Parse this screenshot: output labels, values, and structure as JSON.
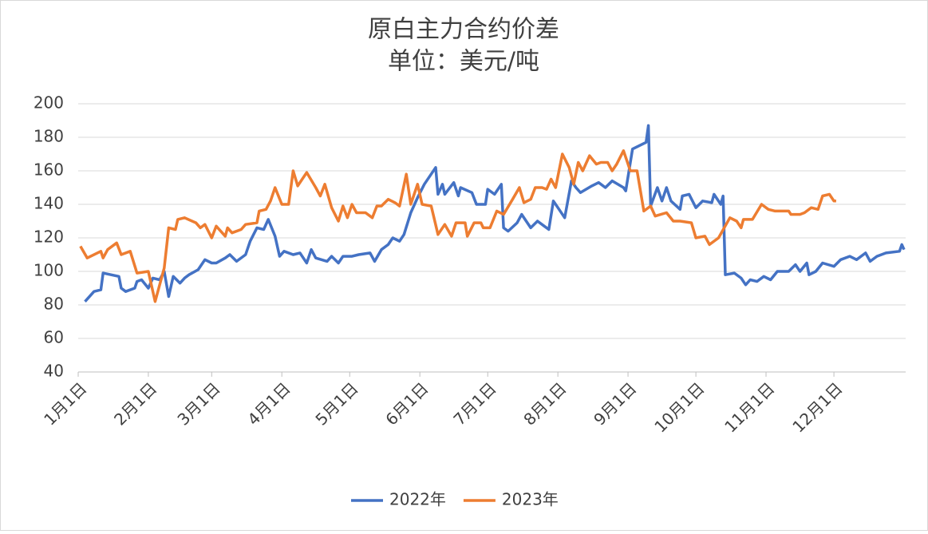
{
  "chart_data": {
    "type": "line",
    "title": "原白主力合约价差",
    "subtitle": "单位：美元/吨",
    "xlim": [
      1,
      366
    ],
    "xticks": [
      {
        "value": 1,
        "label": "1月1日"
      },
      {
        "value": 32,
        "label": "2月1日"
      },
      {
        "value": 60,
        "label": "3月1日"
      },
      {
        "value": 91,
        "label": "4月1日"
      },
      {
        "value": 121,
        "label": "5月1日"
      },
      {
        "value": 152,
        "label": "6月1日"
      },
      {
        "value": 182,
        "label": "7月1日"
      },
      {
        "value": 213,
        "label": "8月1日"
      },
      {
        "value": 244,
        "label": "9月1日"
      },
      {
        "value": 274,
        "label": "10月1日"
      },
      {
        "value": 305,
        "label": "11月1日"
      },
      {
        "value": 335,
        "label": "12月1日"
      }
    ],
    "ylim": [
      40,
      200
    ],
    "yticks": [
      40,
      60,
      80,
      100,
      120,
      140,
      160,
      180,
      200
    ],
    "grid": true,
    "legend": "bottom",
    "series": [
      {
        "name": "2022年",
        "color": "#4472c4",
        "x": [
          4,
          8,
          11,
          12,
          19,
          20,
          22,
          26,
          27,
          29,
          32,
          34,
          37,
          39,
          41,
          43,
          46,
          48,
          50,
          54,
          57,
          60,
          62,
          66,
          68,
          71,
          75,
          77,
          80,
          83,
          85,
          88,
          90,
          92,
          96,
          99,
          102,
          104,
          106,
          111,
          113,
          116,
          118,
          122,
          125,
          130,
          132,
          135,
          138,
          140,
          143,
          145,
          148,
          151,
          154,
          159,
          160,
          162,
          163,
          167,
          169,
          170,
          175,
          177,
          181,
          182,
          185,
          188,
          189,
          191,
          195,
          197,
          201,
          204,
          207,
          209,
          211,
          213,
          216,
          219,
          221,
          223,
          228,
          231,
          234,
          237,
          242,
          243,
          246,
          252,
          253,
          254,
          257,
          259,
          261,
          263,
          267,
          268,
          271,
          274,
          277,
          281,
          282,
          285,
          286,
          287,
          291,
          294,
          296,
          298,
          301,
          304,
          307,
          310,
          315,
          318,
          320,
          323,
          324,
          327,
          330,
          335,
          338,
          342,
          345,
          349,
          351,
          354,
          358,
          364,
          365,
          366
        ],
        "values": [
          82,
          88,
          89,
          99,
          97,
          90,
          88,
          90,
          94,
          95,
          90,
          96,
          95,
          100,
          85,
          97,
          93,
          96,
          98,
          101,
          107,
          105,
          105,
          108,
          110,
          106,
          110,
          118,
          126,
          125,
          131,
          121,
          109,
          112,
          110,
          111,
          105,
          113,
          108,
          106,
          109,
          105,
          109,
          109,
          110,
          111,
          106,
          113,
          116,
          120,
          118,
          122,
          135,
          144,
          152,
          162,
          146,
          152,
          146,
          153,
          145,
          150,
          147,
          140,
          140,
          149,
          146,
          152,
          126,
          124,
          129,
          134,
          126,
          130,
          127,
          125,
          142,
          138,
          132,
          154,
          150,
          147,
          151,
          153,
          150,
          154,
          150,
          148,
          173,
          177,
          187,
          139,
          150,
          142,
          150,
          142,
          137,
          145,
          146,
          138,
          142,
          141,
          146,
          140,
          145,
          98,
          99,
          96,
          92,
          95,
          94,
          97,
          95,
          100,
          100,
          104,
          100,
          105,
          98,
          100,
          105,
          103,
          107,
          109,
          107,
          111,
          106,
          109,
          111,
          112,
          116,
          113
        ]
      },
      {
        "name": "2023年",
        "color": "#ed7d31",
        "x": [
          2,
          5,
          11,
          12,
          14,
          18,
          20,
          24,
          27,
          32,
          35,
          39,
          41,
          44,
          45,
          48,
          53,
          55,
          57,
          60,
          62,
          66,
          67,
          69,
          73,
          75,
          80,
          81,
          84,
          86,
          88,
          91,
          94,
          96,
          98,
          102,
          106,
          108,
          110,
          113,
          116,
          118,
          120,
          122,
          124,
          128,
          131,
          133,
          135,
          138,
          141,
          143,
          146,
          148,
          151,
          153,
          157,
          160,
          163,
          166,
          168,
          172,
          173,
          176,
          179,
          180,
          183,
          186,
          189,
          193,
          196,
          198,
          201,
          203,
          206,
          208,
          210,
          212,
          215,
          218,
          220,
          222,
          224,
          227,
          230,
          232,
          235,
          237,
          239,
          242,
          245,
          248,
          251,
          254,
          256,
          261,
          264,
          267,
          272,
          274,
          278,
          280,
          284,
          289,
          292,
          294,
          295,
          299,
          303,
          306,
          309,
          315,
          316,
          320,
          322,
          325,
          328,
          330,
          333,
          335,
          336
        ],
        "values": [
          115,
          108,
          112,
          108,
          113,
          117,
          110,
          112,
          99,
          100,
          82,
          102,
          126,
          125,
          131,
          132,
          129,
          126,
          128,
          120,
          127,
          121,
          126,
          123,
          125,
          128,
          129,
          136,
          137,
          142,
          150,
          140,
          140,
          160,
          151,
          159,
          150,
          145,
          152,
          138,
          130,
          139,
          132,
          140,
          135,
          135,
          132,
          139,
          139,
          143,
          141,
          139,
          158,
          140,
          152,
          140,
          139,
          122,
          128,
          121,
          129,
          129,
          121,
          129,
          129,
          126,
          126,
          136,
          134,
          143,
          150,
          141,
          143,
          150,
          150,
          149,
          155,
          150,
          170,
          162,
          152,
          165,
          160,
          169,
          164,
          165,
          165,
          160,
          164,
          172,
          160,
          160,
          136,
          139,
          133,
          135,
          130,
          130,
          129,
          120,
          121,
          116,
          120,
          132,
          130,
          126,
          131,
          131,
          140,
          137,
          136,
          136,
          134,
          134,
          135,
          138,
          137,
          145,
          146,
          142,
          142
        ]
      }
    ]
  }
}
